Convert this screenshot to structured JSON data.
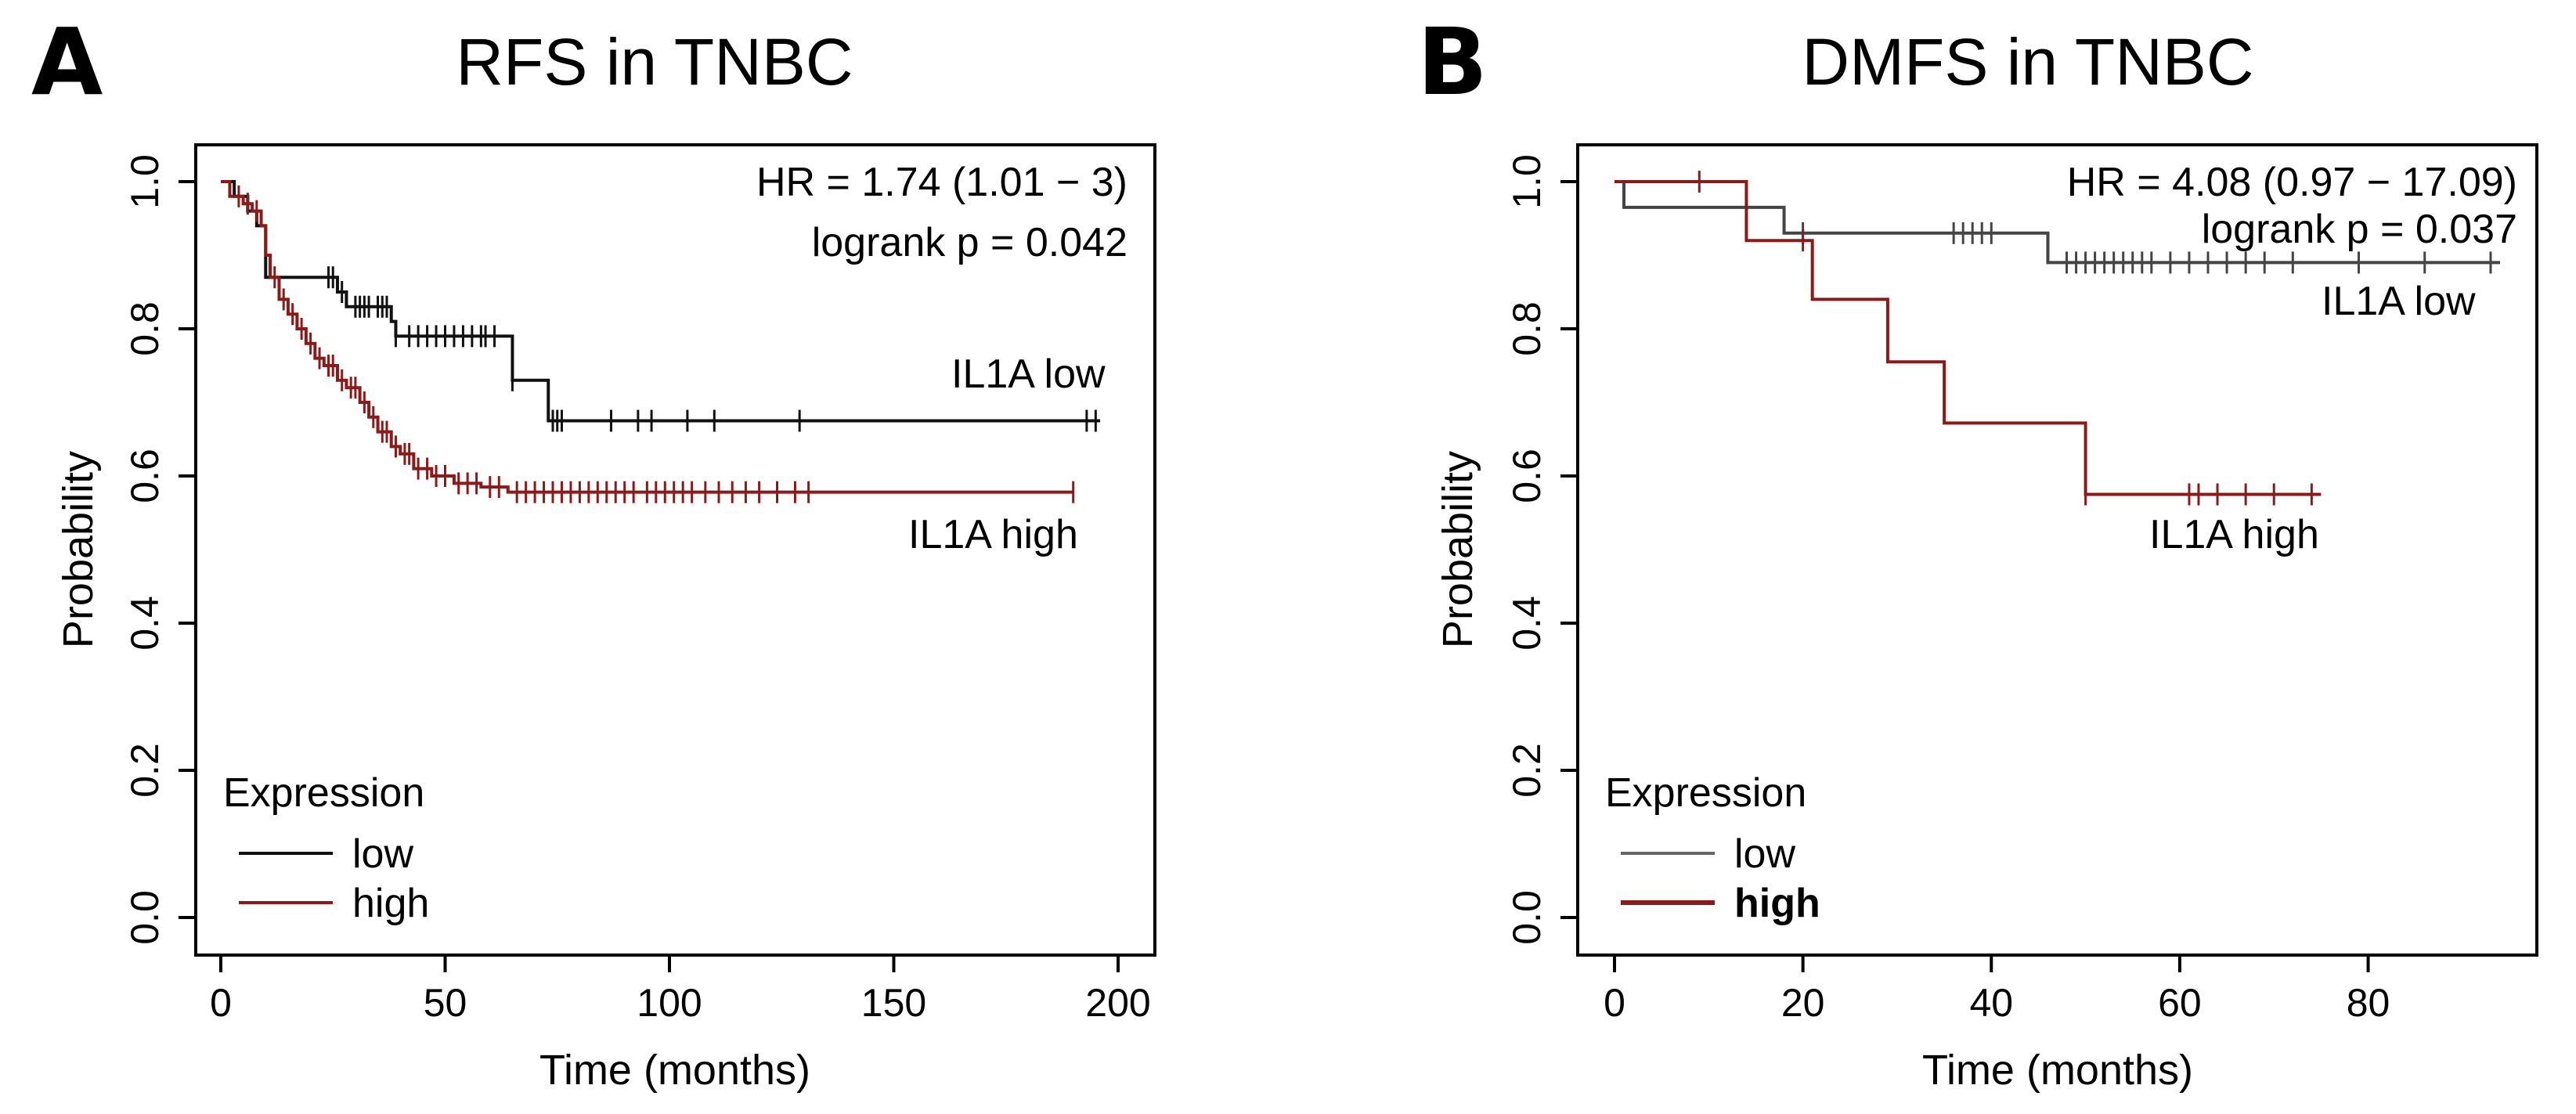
{
  "colors": {
    "low": "#111111",
    "high": "#8b1a1a",
    "axis": "#000000"
  },
  "chart_data": [
    {
      "panel_letter": "A",
      "type": "line",
      "title": "RFS in TNBC",
      "xlabel": "Time (months)",
      "ylabel": "Probability",
      "xlim": [
        0,
        200
      ],
      "ylim": [
        0,
        1
      ],
      "xticks": [
        "0",
        "50",
        "100",
        "150",
        "200"
      ],
      "yticks": [
        "0.0",
        "0.2",
        "0.4",
        "0.6",
        "0.8",
        "1.0"
      ],
      "hr_text": "HR = 1.74 (1.01 − 3)",
      "logrank_text": "logrank p = 0.042",
      "legend": {
        "title": "Expression",
        "entries": [
          "low",
          "high"
        ],
        "placement": "bottom-left"
      },
      "series": [
        {
          "key": "low",
          "name": "low",
          "end_label": "IL1A low",
          "steps": [
            [
              0,
              1.0
            ],
            [
              3,
              0.98
            ],
            [
              6,
              0.96
            ],
            [
              8,
              0.94
            ],
            [
              10,
              0.87
            ],
            [
              26,
              0.85
            ],
            [
              28,
              0.83
            ],
            [
              38,
              0.81
            ],
            [
              39,
              0.79
            ],
            [
              65,
              0.73
            ],
            [
              73,
              0.675
            ],
            [
              196,
              0.675
            ]
          ],
          "censor_x": [
            24,
            25,
            27,
            30,
            31,
            32,
            33,
            35,
            36,
            37,
            39,
            42,
            44,
            46,
            48,
            50,
            52,
            54,
            56,
            58,
            59,
            61,
            65,
            74,
            75,
            76,
            87,
            93,
            96,
            104,
            110,
            129,
            193,
            195
          ]
        },
        {
          "key": "high",
          "name": "high",
          "end_label": "IL1A high",
          "steps": [
            [
              0,
              1.0
            ],
            [
              2,
              0.98
            ],
            [
              5,
              0.97
            ],
            [
              7,
              0.96
            ],
            [
              9,
              0.94
            ],
            [
              10,
              0.9
            ],
            [
              11,
              0.87
            ],
            [
              13,
              0.84
            ],
            [
              15,
              0.82
            ],
            [
              17,
              0.8
            ],
            [
              19,
              0.78
            ],
            [
              21,
              0.76
            ],
            [
              23,
              0.75
            ],
            [
              26,
              0.73
            ],
            [
              28,
              0.72
            ],
            [
              31,
              0.7
            ],
            [
              33,
              0.68
            ],
            [
              35,
              0.66
            ],
            [
              38,
              0.64
            ],
            [
              40,
              0.63
            ],
            [
              43,
              0.61
            ],
            [
              47,
              0.6
            ],
            [
              52,
              0.59
            ],
            [
              58,
              0.585
            ],
            [
              64,
              0.578
            ],
            [
              190,
              0.578
            ]
          ],
          "censor_x": [
            4,
            6,
            8,
            12,
            14,
            16,
            18,
            20,
            22,
            24,
            25,
            27,
            29,
            30,
            32,
            34,
            36,
            37,
            39,
            41,
            42,
            44,
            46,
            48,
            50,
            53,
            55,
            57,
            60,
            62,
            66,
            68,
            70,
            72,
            74,
            76,
            78,
            80,
            82,
            84,
            86,
            88,
            90,
            92,
            95,
            97,
            99,
            101,
            103,
            105,
            108,
            111,
            114,
            117,
            120,
            124,
            128,
            131,
            190
          ]
        }
      ]
    },
    {
      "panel_letter": "B",
      "type": "line",
      "title": "DMFS in TNBC",
      "xlabel": "Time (months)",
      "ylabel": "Probability",
      "xlim": [
        0,
        94
      ],
      "ylim": [
        0,
        1
      ],
      "xticks": [
        "0",
        "20",
        "40",
        "60",
        "80"
      ],
      "yticks": [
        "0.0",
        "0.2",
        "0.4",
        "0.6",
        "0.8",
        "1.0"
      ],
      "hr_text": "HR = 4.08 (0.97 − 17.09)",
      "logrank_text": "logrank p = 0.037",
      "legend": {
        "title": "Expression",
        "entries": [
          "low",
          "high"
        ],
        "placement": "bottom-left"
      },
      "series": [
        {
          "key": "low",
          "name": "low",
          "end_label": "IL1A low",
          "steps": [
            [
              0,
              1.0
            ],
            [
              1,
              0.965
            ],
            [
              18,
              0.93
            ],
            [
              46,
              0.89
            ],
            [
              94,
              0.89
            ]
          ],
          "censor_x": [
            14,
            20,
            36,
            37,
            38,
            39,
            40,
            48,
            49,
            50,
            51,
            52,
            53,
            54,
            55,
            56,
            57,
            59,
            61,
            63,
            65,
            67,
            69,
            72,
            79,
            86,
            93
          ]
        },
        {
          "key": "high",
          "name": "high",
          "end_label": "IL1A high",
          "steps": [
            [
              0,
              1.0
            ],
            [
              14,
              0.92
            ],
            [
              21,
              0.84
            ],
            [
              29,
              0.755
            ],
            [
              35,
              0.672
            ],
            [
              50,
              0.575
            ],
            [
              75,
              0.575
            ]
          ],
          "censor_x": [
            9,
            20,
            50,
            61,
            62,
            64,
            67,
            70,
            74
          ]
        }
      ]
    }
  ]
}
